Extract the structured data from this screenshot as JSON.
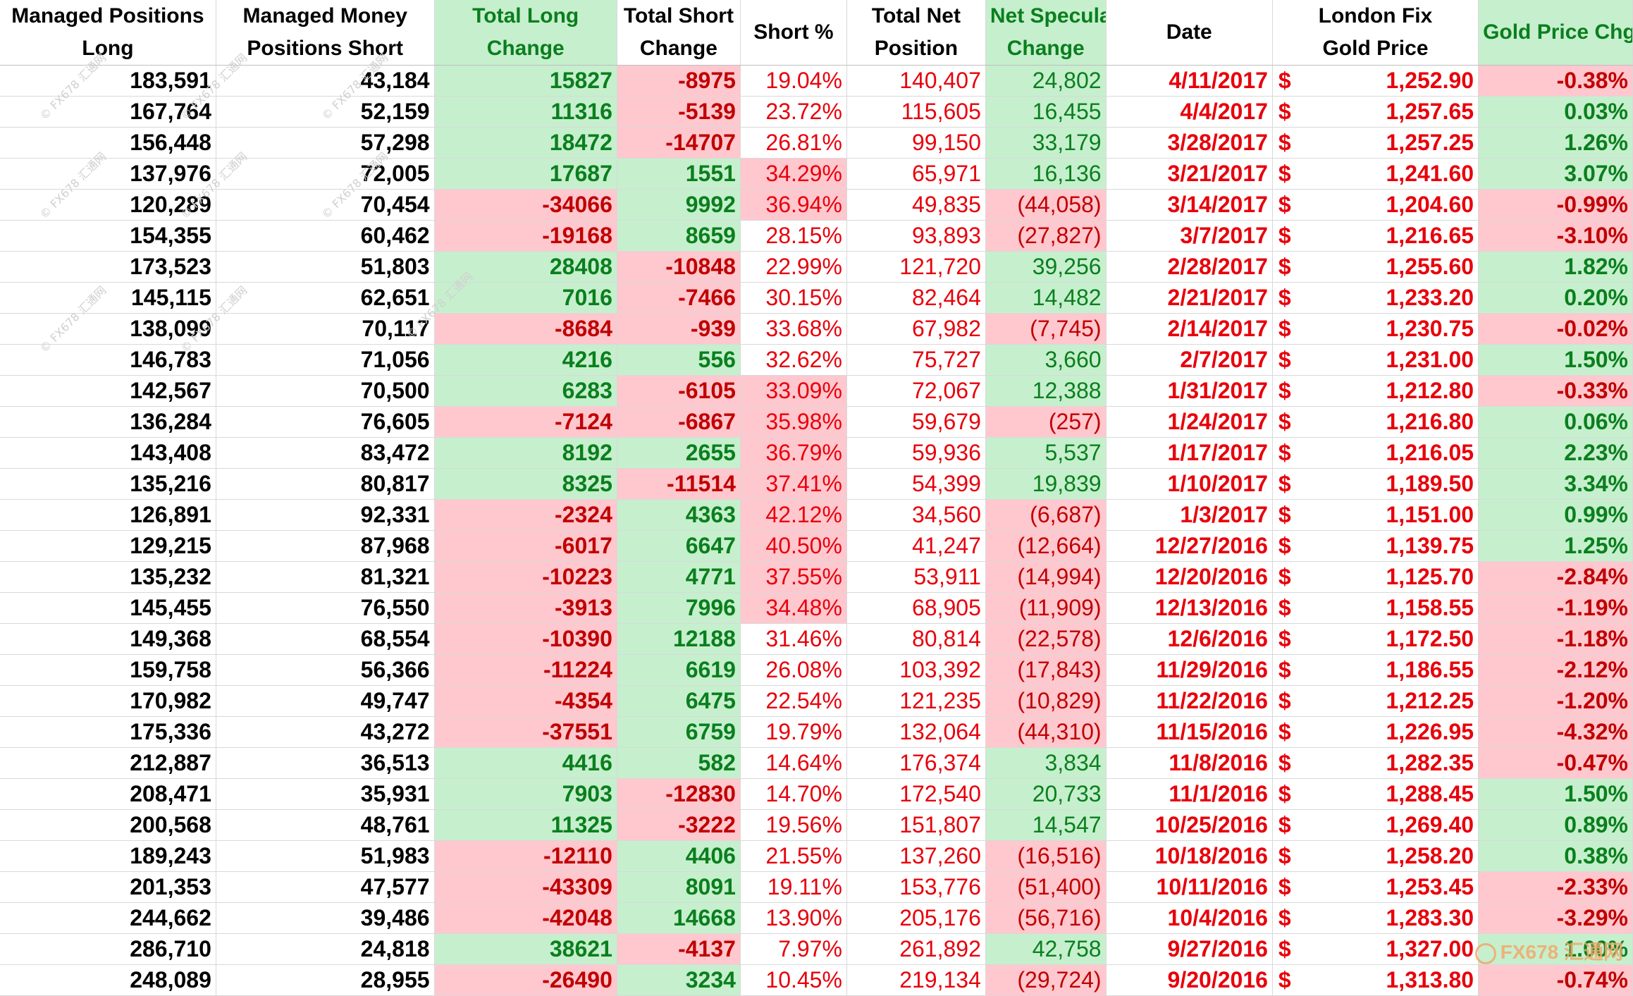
{
  "headers": [
    {
      "line1": "Managed Positions",
      "line2": "Long"
    },
    {
      "line1": "Managed Money",
      "line2": "Positions Short"
    },
    {
      "line1": "Total Long",
      "line2": "Change"
    },
    {
      "line1": "Total Short",
      "line2": "Change"
    },
    {
      "line1": "Short %",
      "line2": ""
    },
    {
      "line1": "Total Net",
      "line2": "Position"
    },
    {
      "line1": "Net Speculative",
      "line2": "Change"
    },
    {
      "line1": "Date",
      "line2": ""
    },
    {
      "line1": "London Fix",
      "line2": "Gold Price"
    },
    {
      "line1": "Gold Price Chg %",
      "line2": ""
    }
  ],
  "currency_symbol": "$",
  "colors": {
    "positive_fill": "#c6efce",
    "negative_fill": "#ffc7ce",
    "positive_text": "#0a7f1d",
    "negative_text": "#c00000",
    "red": "#e8000b"
  },
  "rows": [
    {
      "long": "183,591",
      "short": "43,184",
      "long_chg": "15827",
      "short_chg": "-8975",
      "short_pct": "19.04%",
      "net": "140,407",
      "net_chg": "24,802",
      "date": "4/11/2017",
      "price": "1,252.90",
      "price_chg": "-0.38%"
    },
    {
      "long": "167,764",
      "short": "52,159",
      "long_chg": "11316",
      "short_chg": "-5139",
      "short_pct": "23.72%",
      "net": "115,605",
      "net_chg": "16,455",
      "date": "4/4/2017",
      "price": "1,257.65",
      "price_chg": "0.03%"
    },
    {
      "long": "156,448",
      "short": "57,298",
      "long_chg": "18472",
      "short_chg": "-14707",
      "short_pct": "26.81%",
      "net": "99,150",
      "net_chg": "33,179",
      "date": "3/28/2017",
      "price": "1,257.25",
      "price_chg": "1.26%"
    },
    {
      "long": "137,976",
      "short": "72,005",
      "long_chg": "17687",
      "short_chg": "1551",
      "short_pct": "34.29%",
      "net": "65,971",
      "net_chg": "16,136",
      "date": "3/21/2017",
      "price": "1,241.60",
      "price_chg": "3.07%"
    },
    {
      "long": "120,289",
      "short": "70,454",
      "long_chg": "-34066",
      "short_chg": "9992",
      "short_pct": "36.94%",
      "net": "49,835",
      "net_chg": "(44,058)",
      "date": "3/14/2017",
      "price": "1,204.60",
      "price_chg": "-0.99%"
    },
    {
      "long": "154,355",
      "short": "60,462",
      "long_chg": "-19168",
      "short_chg": "8659",
      "short_pct": "28.15%",
      "net": "93,893",
      "net_chg": "(27,827)",
      "date": "3/7/2017",
      "price": "1,216.65",
      "price_chg": "-3.10%"
    },
    {
      "long": "173,523",
      "short": "51,803",
      "long_chg": "28408",
      "short_chg": "-10848",
      "short_pct": "22.99%",
      "net": "121,720",
      "net_chg": "39,256",
      "date": "2/28/2017",
      "price": "1,255.60",
      "price_chg": "1.82%"
    },
    {
      "long": "145,115",
      "short": "62,651",
      "long_chg": "7016",
      "short_chg": "-7466",
      "short_pct": "30.15%",
      "net": "82,464",
      "net_chg": "14,482",
      "date": "2/21/2017",
      "price": "1,233.20",
      "price_chg": "0.20%"
    },
    {
      "long": "138,099",
      "short": "70,117",
      "long_chg": "-8684",
      "short_chg": "-939",
      "short_pct": "33.68%",
      "net": "67,982",
      "net_chg": "(7,745)",
      "date": "2/14/2017",
      "price": "1,230.75",
      "price_chg": "-0.02%"
    },
    {
      "long": "146,783",
      "short": "71,056",
      "long_chg": "4216",
      "short_chg": "556",
      "short_pct": "32.62%",
      "net": "75,727",
      "net_chg": "3,660",
      "date": "2/7/2017",
      "price": "1,231.00",
      "price_chg": "1.50%"
    },
    {
      "long": "142,567",
      "short": "70,500",
      "long_chg": "6283",
      "short_chg": "-6105",
      "short_pct": "33.09%",
      "net": "72,067",
      "net_chg": "12,388",
      "date": "1/31/2017",
      "price": "1,212.80",
      "price_chg": "-0.33%"
    },
    {
      "long": "136,284",
      "short": "76,605",
      "long_chg": "-7124",
      "short_chg": "-6867",
      "short_pct": "35.98%",
      "net": "59,679",
      "net_chg": "(257)",
      "date": "1/24/2017",
      "price": "1,216.80",
      "price_chg": "0.06%"
    },
    {
      "long": "143,408",
      "short": "83,472",
      "long_chg": "8192",
      "short_chg": "2655",
      "short_pct": "36.79%",
      "net": "59,936",
      "net_chg": "5,537",
      "date": "1/17/2017",
      "price": "1,216.05",
      "price_chg": "2.23%"
    },
    {
      "long": "135,216",
      "short": "80,817",
      "long_chg": "8325",
      "short_chg": "-11514",
      "short_pct": "37.41%",
      "net": "54,399",
      "net_chg": "19,839",
      "date": "1/10/2017",
      "price": "1,189.50",
      "price_chg": "3.34%"
    },
    {
      "long": "126,891",
      "short": "92,331",
      "long_chg": "-2324",
      "short_chg": "4363",
      "short_pct": "42.12%",
      "net": "34,560",
      "net_chg": "(6,687)",
      "date": "1/3/2017",
      "price": "1,151.00",
      "price_chg": "0.99%"
    },
    {
      "long": "129,215",
      "short": "87,968",
      "long_chg": "-6017",
      "short_chg": "6647",
      "short_pct": "40.50%",
      "net": "41,247",
      "net_chg": "(12,664)",
      "date": "12/27/2016",
      "price": "1,139.75",
      "price_chg": "1.25%"
    },
    {
      "long": "135,232",
      "short": "81,321",
      "long_chg": "-10223",
      "short_chg": "4771",
      "short_pct": "37.55%",
      "net": "53,911",
      "net_chg": "(14,994)",
      "date": "12/20/2016",
      "price": "1,125.70",
      "price_chg": "-2.84%"
    },
    {
      "long": "145,455",
      "short": "76,550",
      "long_chg": "-3913",
      "short_chg": "7996",
      "short_pct": "34.48%",
      "net": "68,905",
      "net_chg": "(11,909)",
      "date": "12/13/2016",
      "price": "1,158.55",
      "price_chg": "-1.19%"
    },
    {
      "long": "149,368",
      "short": "68,554",
      "long_chg": "-10390",
      "short_chg": "12188",
      "short_pct": "31.46%",
      "net": "80,814",
      "net_chg": "(22,578)",
      "date": "12/6/2016",
      "price": "1,172.50",
      "price_chg": "-1.18%"
    },
    {
      "long": "159,758",
      "short": "56,366",
      "long_chg": "-11224",
      "short_chg": "6619",
      "short_pct": "26.08%",
      "net": "103,392",
      "net_chg": "(17,843)",
      "date": "11/29/2016",
      "price": "1,186.55",
      "price_chg": "-2.12%"
    },
    {
      "long": "170,982",
      "short": "49,747",
      "long_chg": "-4354",
      "short_chg": "6475",
      "short_pct": "22.54%",
      "net": "121,235",
      "net_chg": "(10,829)",
      "date": "11/22/2016",
      "price": "1,212.25",
      "price_chg": "-1.20%"
    },
    {
      "long": "175,336",
      "short": "43,272",
      "long_chg": "-37551",
      "short_chg": "6759",
      "short_pct": "19.79%",
      "net": "132,064",
      "net_chg": "(44,310)",
      "date": "11/15/2016",
      "price": "1,226.95",
      "price_chg": "-4.32%"
    },
    {
      "long": "212,887",
      "short": "36,513",
      "long_chg": "4416",
      "short_chg": "582",
      "short_pct": "14.64%",
      "net": "176,374",
      "net_chg": "3,834",
      "date": "11/8/2016",
      "price": "1,282.35",
      "price_chg": "-0.47%"
    },
    {
      "long": "208,471",
      "short": "35,931",
      "long_chg": "7903",
      "short_chg": "-12830",
      "short_pct": "14.70%",
      "net": "172,540",
      "net_chg": "20,733",
      "date": "11/1/2016",
      "price": "1,288.45",
      "price_chg": "1.50%"
    },
    {
      "long": "200,568",
      "short": "48,761",
      "long_chg": "11325",
      "short_chg": "-3222",
      "short_pct": "19.56%",
      "net": "151,807",
      "net_chg": "14,547",
      "date": "10/25/2016",
      "price": "1,269.40",
      "price_chg": "0.89%"
    },
    {
      "long": "189,243",
      "short": "51,983",
      "long_chg": "-12110",
      "short_chg": "4406",
      "short_pct": "21.55%",
      "net": "137,260",
      "net_chg": "(16,516)",
      "date": "10/18/2016",
      "price": "1,258.20",
      "price_chg": "0.38%"
    },
    {
      "long": "201,353",
      "short": "47,577",
      "long_chg": "-43309",
      "short_chg": "8091",
      "short_pct": "19.11%",
      "net": "153,776",
      "net_chg": "(51,400)",
      "date": "10/11/2016",
      "price": "1,253.45",
      "price_chg": "-2.33%"
    },
    {
      "long": "244,662",
      "short": "39,486",
      "long_chg": "-42048",
      "short_chg": "14668",
      "short_pct": "13.90%",
      "net": "205,176",
      "net_chg": "(56,716)",
      "date": "10/4/2016",
      "price": "1,283.30",
      "price_chg": "-3.29%"
    },
    {
      "long": "286,710",
      "short": "24,818",
      "long_chg": "38621",
      "short_chg": "-4137",
      "short_pct": "7.97%",
      "net": "261,892",
      "net_chg": "42,758",
      "date": "9/27/2016",
      "price": "1,327.00",
      "price_chg": "1.00%"
    },
    {
      "long": "248,089",
      "short": "28,955",
      "long_chg": "-26490",
      "short_chg": "3234",
      "short_pct": "10.45%",
      "net": "219,134",
      "net_chg": "(29,724)",
      "date": "9/20/2016",
      "price": "1,313.80",
      "price_chg": "-0.74%"
    }
  ],
  "pct_highlight_rows": [
    3,
    4,
    10,
    11,
    12,
    13,
    14,
    15,
    16,
    17
  ],
  "watermark": {
    "logo_text": "FX678",
    "logo_sub": "汇通网",
    "mark_text": "© FX678 汇通网"
  }
}
